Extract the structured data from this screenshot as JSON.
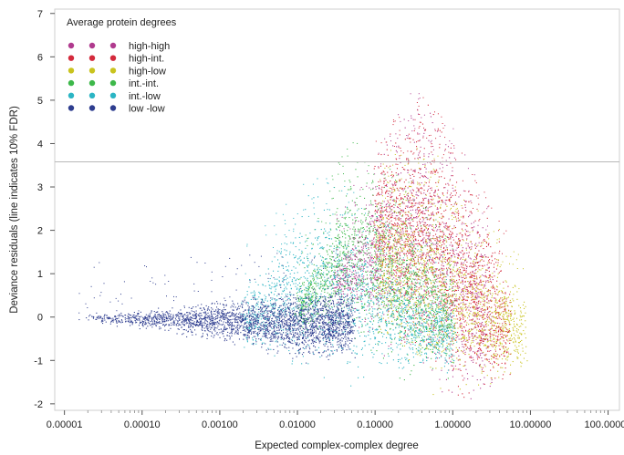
{
  "chart_data": {
    "type": "scatter",
    "title": "",
    "xlabel": "Expected complex-complex degree",
    "ylabel": "Deviance residuals (line indicates 10% FDR)",
    "x_scale": "log",
    "xlim": [
      7.5e-06,
      140
    ],
    "ylim": [
      -2.15,
      7.1
    ],
    "x_ticks": [
      1e-05,
      0.0001,
      0.001,
      0.01,
      0.1,
      1,
      10,
      100
    ],
    "x_tick_labels": [
      "0.00001",
      "0.00010",
      "0.00100",
      "0.01000",
      "0.10000",
      "1.00000",
      "10.00000",
      "100.00000"
    ],
    "y_ticks": [
      -2,
      -1,
      0,
      1,
      2,
      3,
      4,
      5,
      6,
      7
    ],
    "y_tick_labels": [
      "-2",
      "-1",
      "0",
      "1",
      "2",
      "3",
      "4",
      "5",
      "6",
      "7"
    ],
    "fdr_threshold": 3.58,
    "grid": false,
    "legend_title": "Average protein degrees",
    "legend_position": "top-left",
    "series": [
      {
        "name": "high-high",
        "color": "#b03a8e",
        "envelope": [
          {
            "x": 0.03,
            "lo": 0.5,
            "hi": 1.2
          },
          {
            "x": 0.3,
            "lo": -0.3,
            "hi": 4.2
          },
          {
            "x": 1.0,
            "lo": -1.1,
            "hi": 3.2
          },
          {
            "x": 3.0,
            "lo": -1.5,
            "hi": 1.3
          }
        ]
      },
      {
        "name": "high-int.",
        "color": "#d42a3c",
        "envelope": [
          {
            "x": 0.1,
            "lo": 0.8,
            "hi": 3.2
          },
          {
            "x": 0.5,
            "lo": -0.2,
            "hi": 4.0
          },
          {
            "x": 1.5,
            "lo": -1.0,
            "hi": 2.4
          },
          {
            "x": 5.0,
            "lo": -1.3,
            "hi": 0.8
          }
        ]
      },
      {
        "name": "high-low",
        "color": "#c9c31e",
        "envelope": [
          {
            "x": 0.1,
            "lo": 0.0,
            "hi": 2.6
          },
          {
            "x": 0.5,
            "lo": -0.9,
            "hi": 2.8
          },
          {
            "x": 2.0,
            "lo": -1.1,
            "hi": 1.4
          },
          {
            "x": 8.0,
            "lo": -0.9,
            "hi": 0.3
          }
        ]
      },
      {
        "name": "int.-int.",
        "color": "#3db84a",
        "envelope": [
          {
            "x": 0.01,
            "lo": -0.2,
            "hi": 0.5
          },
          {
            "x": 0.05,
            "lo": 0.1,
            "hi": 3.0
          },
          {
            "x": 0.2,
            "lo": -0.6,
            "hi": 2.2
          },
          {
            "x": 1.0,
            "lo": -1.0,
            "hi": 0.8
          }
        ]
      },
      {
        "name": "int.-low",
        "color": "#2bb5c4",
        "envelope": [
          {
            "x": 0.002,
            "lo": -0.5,
            "hi": 0.4
          },
          {
            "x": 0.02,
            "lo": -0.8,
            "hi": 2.5
          },
          {
            "x": 0.2,
            "lo": -0.9,
            "hi": 0.8
          },
          {
            "x": 1.0,
            "lo": -1.0,
            "hi": 0.2
          }
        ]
      },
      {
        "name": "low -low",
        "color": "#2e3d8f",
        "envelope": [
          {
            "x": 1.5e-05,
            "lo": -0.05,
            "hi": 0.05
          },
          {
            "x": 0.001,
            "lo": -0.4,
            "hi": 0.25
          },
          {
            "x": 0.01,
            "lo": -0.75,
            "hi": 0.42
          },
          {
            "x": 0.05,
            "lo": -0.7,
            "hi": 0.45
          }
        ]
      }
    ]
  }
}
